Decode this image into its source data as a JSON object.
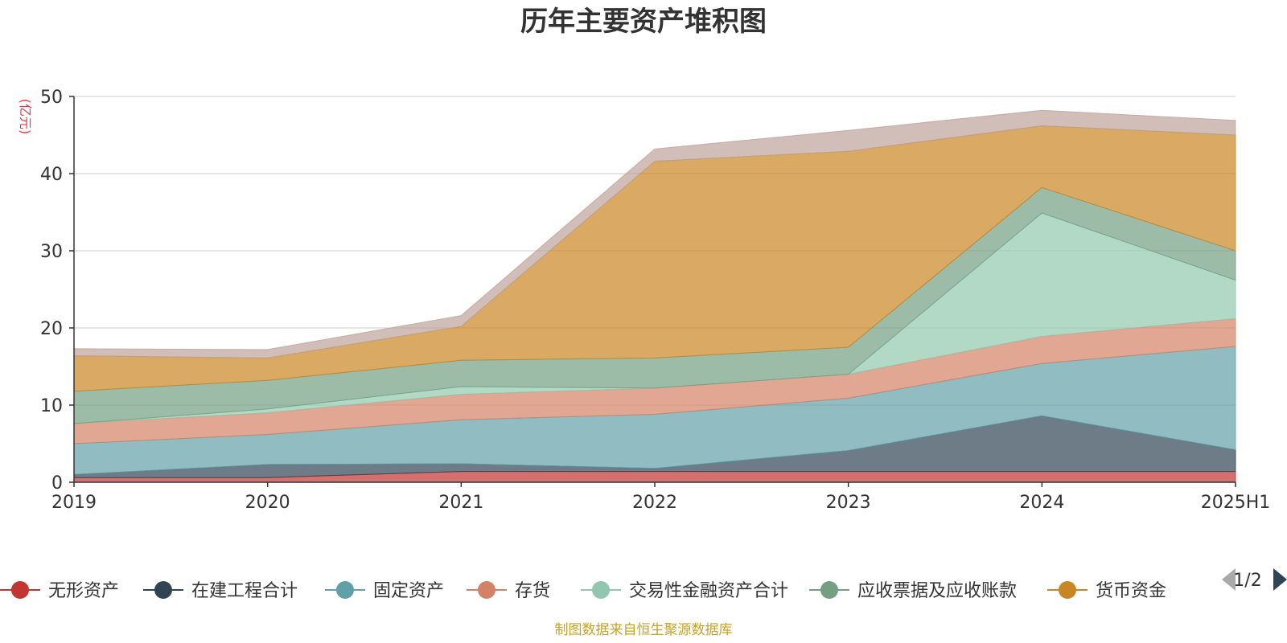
{
  "chart_data": {
    "type": "area",
    "stacked": true,
    "title": "历年主要资产堆积图",
    "unit_label": "(亿元)",
    "categories": [
      "2019",
      "2020",
      "2021",
      "2022",
      "2023",
      "2024",
      "2025H1"
    ],
    "y_ticks": [
      "0",
      "10",
      "20",
      "30",
      "40",
      "50"
    ],
    "ylim": [
      0,
      50
    ],
    "grid": true,
    "legend_position": "bottom",
    "series": [
      {
        "name": "无形资产",
        "color": "#c23531",
        "values": [
          0.6,
          0.6,
          1.4,
          1.4,
          1.4,
          1.4,
          1.4
        ]
      },
      {
        "name": "在建工程合计",
        "color": "#2f4554",
        "values": [
          0.4,
          1.7,
          1.0,
          0.4,
          2.7,
          7.2,
          2.8
        ]
      },
      {
        "name": "固定资产",
        "color": "#61a0a8",
        "values": [
          4.0,
          3.9,
          5.7,
          7.0,
          6.8,
          6.8,
          13.4
        ]
      },
      {
        "name": "存货",
        "color": "#d48265",
        "values": [
          2.6,
          2.8,
          3.3,
          3.4,
          3.1,
          3.5,
          3.6
        ]
      },
      {
        "name": "交易性金融资产合计",
        "color": "#91c7ae",
        "values": [
          0.0,
          0.5,
          1.0,
          0.0,
          0.0,
          16.0,
          5.0
        ]
      },
      {
        "name": "应收票据及应收账款",
        "color": "#749f83",
        "values": [
          4.2,
          3.7,
          3.4,
          3.9,
          3.5,
          3.3,
          3.8
        ]
      },
      {
        "name": "货币资金",
        "color": "#ca8622",
        "values": [
          4.6,
          2.9,
          4.4,
          25.5,
          25.4,
          8.0,
          15.0
        ]
      },
      {
        "name": "",
        "color": "#bda29a",
        "values": [
          0.9,
          1.1,
          1.4,
          1.6,
          2.7,
          2.0,
          1.9
        ]
      }
    ],
    "legend_visible": [
      "无形资产",
      "在建工程合计",
      "固定资产",
      "存货",
      "交易性金融资产合计",
      "应收票据及应收账款",
      "货币资金"
    ]
  },
  "legend_page": "1/2",
  "source_note": "制图数据来自恒生聚源数据库"
}
